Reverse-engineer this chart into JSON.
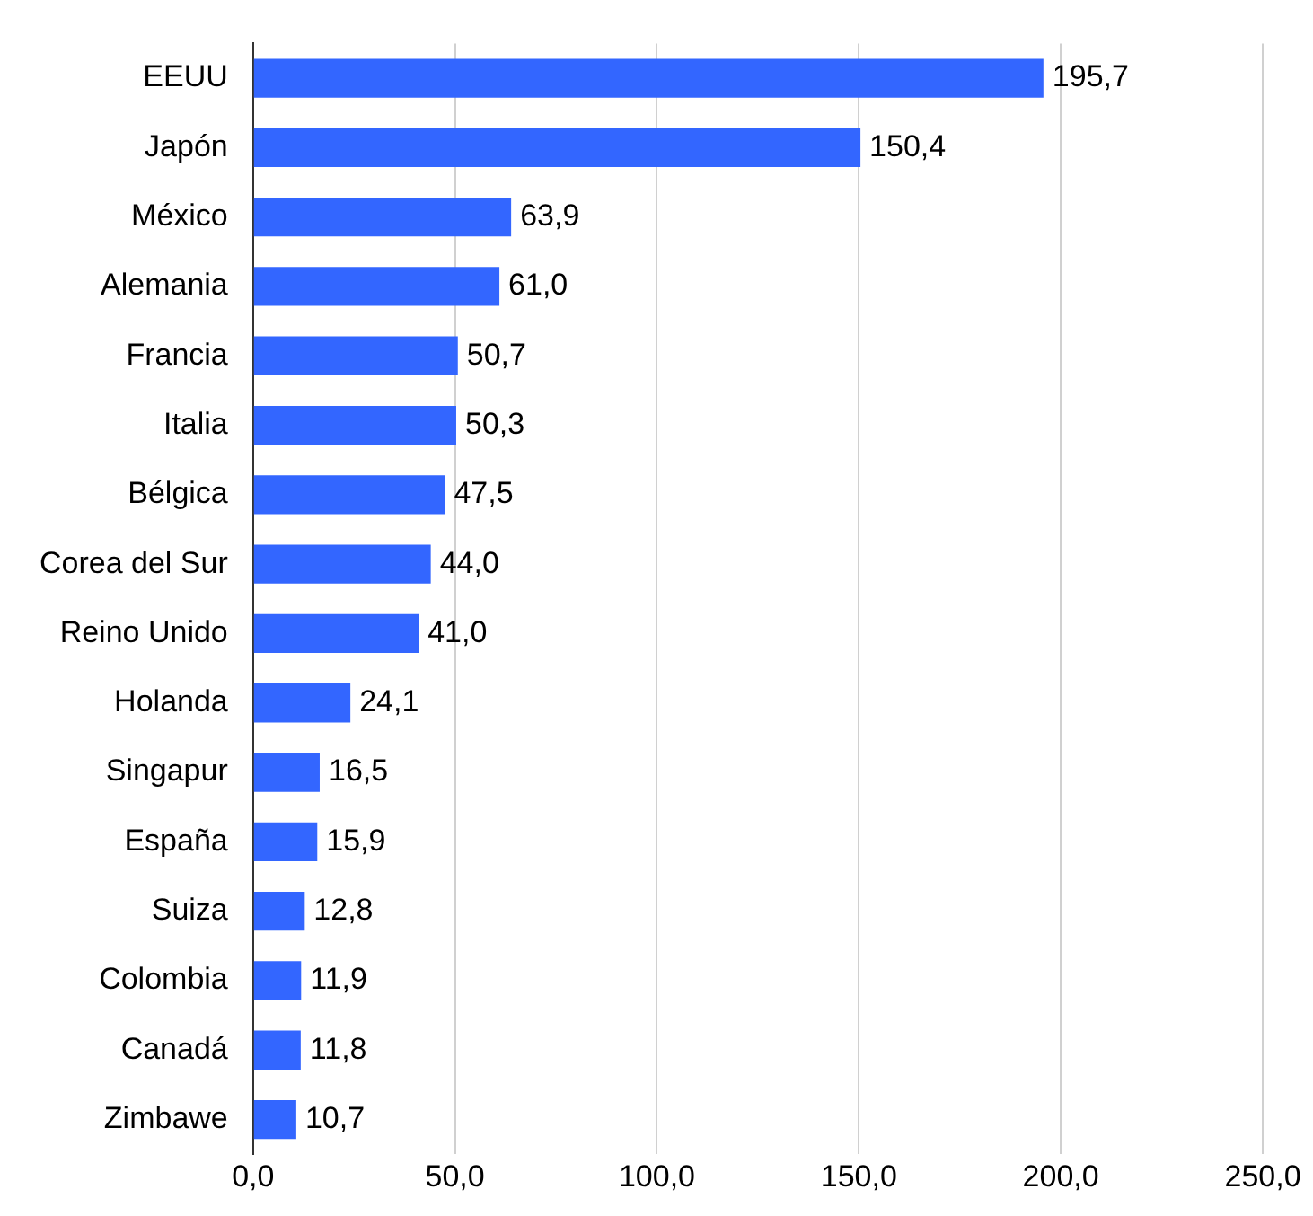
{
  "chart_data": {
    "type": "bar",
    "orientation": "horizontal",
    "categories": [
      "EEUU",
      "Japón",
      "México",
      "Alemania",
      "Francia",
      "Italia",
      "Bélgica",
      "Corea del Sur",
      "Reino Unido",
      "Holanda",
      "Singapur",
      "España",
      "Suiza",
      "Colombia",
      "Canadá",
      "Zimbawe"
    ],
    "values": [
      195.7,
      150.4,
      63.9,
      61.0,
      50.7,
      50.3,
      47.5,
      44.0,
      41.0,
      24.1,
      16.5,
      15.9,
      12.8,
      11.9,
      11.8,
      10.7
    ],
    "value_labels": [
      "195,7",
      "150,4",
      "63,9",
      "61,0",
      "50,7",
      "50,3",
      "47,5",
      "44,0",
      "41,0",
      "24,1",
      "16,5",
      "15,9",
      "12,8",
      "11,9",
      "11,8",
      "10,7"
    ],
    "color": "#3366ff",
    "xlim": [
      0,
      250
    ],
    "xticks": [
      {
        "value": 0,
        "label": "0,0"
      },
      {
        "value": 50,
        "label": "50,0"
      },
      {
        "value": 100,
        "label": "100,0"
      },
      {
        "value": 150,
        "label": "150,0"
      },
      {
        "value": 200,
        "label": "200,0"
      },
      {
        "value": 250,
        "label": "250,0"
      }
    ],
    "grid": "x",
    "legend": false
  }
}
